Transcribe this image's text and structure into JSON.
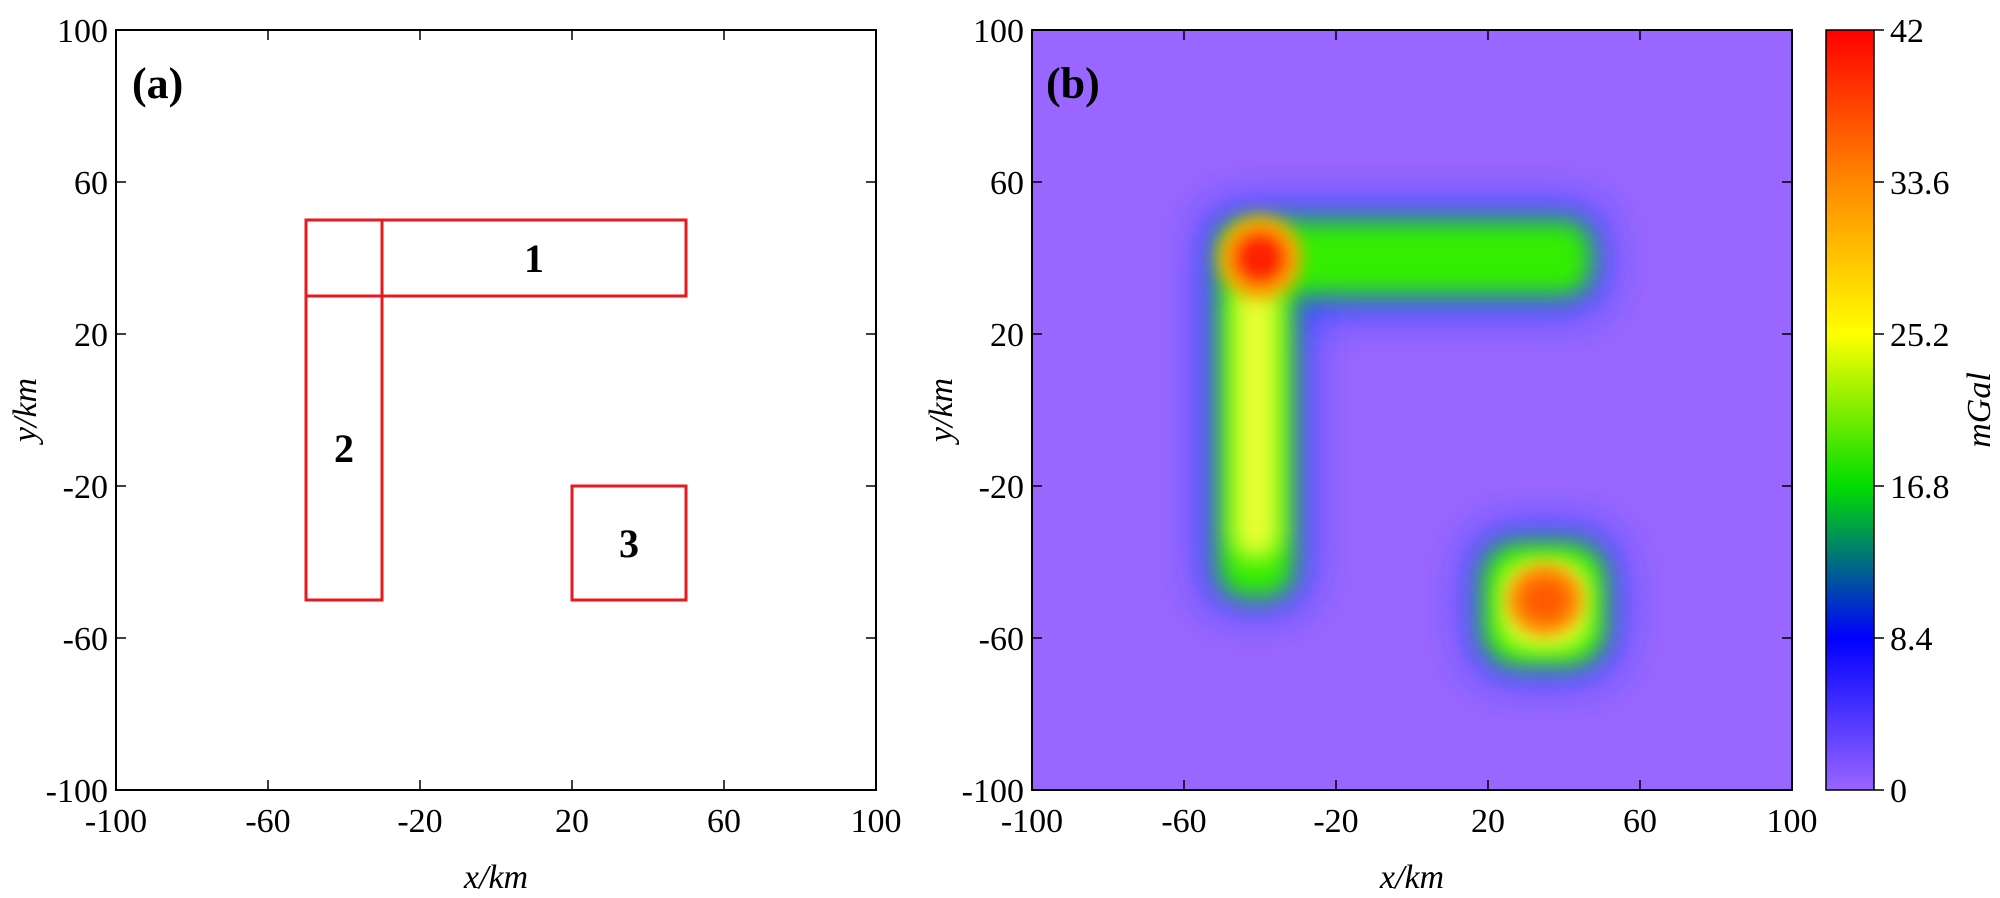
{
  "chart_data": [
    {
      "type": "diagram",
      "panel_label": "(a)",
      "xlabel": "x/km",
      "ylabel": "y/km",
      "xlim": [
        -100,
        100
      ],
      "ylim": [
        -100,
        100
      ],
      "xticks": [
        "-100",
        "-60",
        "-20",
        "20",
        "60",
        "100"
      ],
      "yticks": [
        "100",
        "60",
        "20",
        "-20",
        "-60",
        "-100"
      ],
      "outline_color": "#e8191f",
      "bodies": [
        {
          "label": "1",
          "x": [
            -50,
            50
          ],
          "y": [
            30,
            50
          ]
        },
        {
          "label": "2",
          "x": [
            -50,
            -30
          ],
          "y": [
            -50,
            50
          ]
        },
        {
          "label": "3",
          "x": [
            20,
            50
          ],
          "y": [
            -50,
            -20
          ]
        }
      ]
    },
    {
      "type": "heatmap",
      "panel_label": "(b)",
      "xlabel": "x/km",
      "ylabel": "y/km",
      "xlim": [
        -100,
        100
      ],
      "ylim": [
        -100,
        100
      ],
      "xticks": [
        "-100",
        "-60",
        "-20",
        "20",
        "60",
        "100"
      ],
      "yticks": [
        "100",
        "60",
        "20",
        "-20",
        "-60",
        "-100"
      ],
      "colorbar": {
        "label": "mGal",
        "range": [
          0,
          42
        ],
        "ticks": [
          "42",
          "33.6",
          "25.2",
          "16.8",
          "8.4",
          "0"
        ],
        "colors": [
          "#9966ff",
          "#0000ff",
          "#00dd00",
          "#ffff00",
          "#ff8800",
          "#ff0000"
        ]
      },
      "background_color": "#9966ff",
      "anomaly_peaks": [
        {
          "x": -40,
          "y": 40,
          "value": 42
        },
        {
          "x": 35,
          "y": -35,
          "value": 40
        }
      ]
    }
  ]
}
